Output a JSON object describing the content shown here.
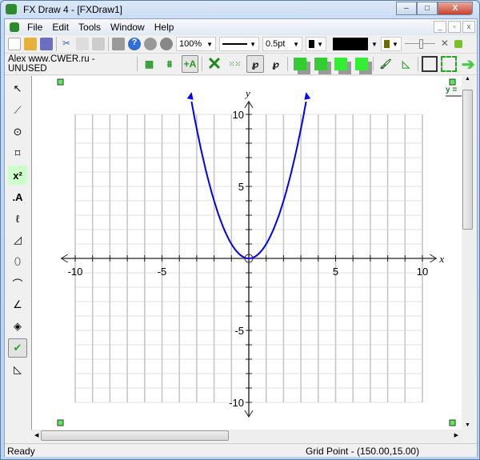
{
  "window": {
    "title": "FX Draw 4 - [FXDraw1]",
    "buttons": {
      "minimize": "–",
      "maximize": "□",
      "close": "X"
    }
  },
  "menu": [
    "File",
    "Edit",
    "Tools",
    "Window",
    "Help"
  ],
  "toolbar": {
    "zoom": "100%",
    "line_width": "0.5pt",
    "fill_color": "#000000"
  },
  "toolbar2": {
    "user_label": "Alex www.CWER.ru - UNUSED"
  },
  "side_tab": "y =",
  "graph": {
    "x_label": "x",
    "y_label": "y",
    "x_ticks": [
      "-10",
      "-5",
      "5",
      "10"
    ],
    "y_ticks": [
      "10",
      "5",
      "-5",
      "-10"
    ],
    "xlim": [
      -10,
      10
    ],
    "ylim": [
      -10,
      10
    ],
    "curve_color": "#0000ff",
    "function": "y = x^2"
  },
  "status": {
    "left": "Ready",
    "right": "Grid Point - (150.00,15.00)"
  }
}
